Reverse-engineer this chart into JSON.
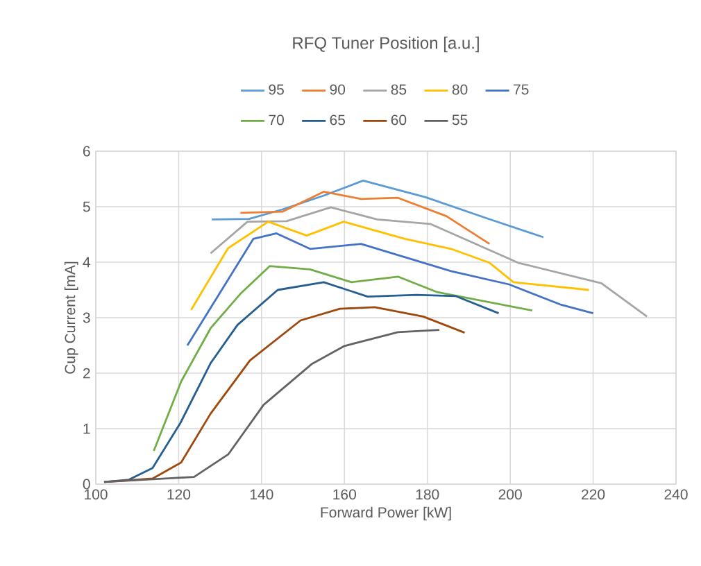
{
  "chart_data": {
    "type": "line",
    "legend_title": "RFQ Tuner Position [a.u.]",
    "xlabel": "Forward Power [kW]",
    "ylabel": "Cup Current [mA]",
    "xlim": [
      100,
      240
    ],
    "xticks": [
      100,
      120,
      140,
      160,
      180,
      200,
      220,
      240
    ],
    "ylim": [
      0,
      6
    ],
    "yticks": [
      0,
      1,
      2,
      3,
      4,
      5,
      6
    ],
    "grid": true,
    "legend": "top",
    "marker": "none",
    "line_style": "solid",
    "series": [
      {
        "name": "95",
        "color": "#5b9bd5",
        "x": [
          128,
          137,
          145,
          155,
          164.5,
          179.6,
          194,
          208
        ],
        "values": [
          4.77,
          4.78,
          4.95,
          5.2,
          5.47,
          5.17,
          4.8,
          4.45
        ]
      },
      {
        "name": "90",
        "color": "#ed7d31",
        "x": [
          134.9,
          145,
          155,
          164,
          172.9,
          184.6,
          195
        ],
        "values": [
          4.89,
          4.91,
          5.27,
          5.14,
          5.16,
          4.83,
          4.33
        ]
      },
      {
        "name": "85",
        "color": "#a5a5a5",
        "x": [
          127.7,
          136.6,
          146,
          156.7,
          167.9,
          180.7,
          201.9,
          222,
          233
        ],
        "values": [
          4.16,
          4.73,
          4.74,
          4.99,
          4.77,
          4.69,
          3.99,
          3.62,
          3.02
        ]
      },
      {
        "name": "80",
        "color": "#ffc000",
        "x": [
          123,
          131.9,
          141.6,
          150.9,
          159.8,
          174.6,
          185.7,
          195,
          200.8,
          219
        ],
        "values": [
          3.14,
          4.25,
          4.73,
          4.48,
          4.73,
          4.42,
          4.24,
          3.99,
          3.64,
          3.5
        ]
      },
      {
        "name": "75",
        "color": "#4472c4",
        "x": [
          122.1,
          138,
          143.6,
          151.7,
          164,
          185.7,
          199.7,
          212,
          220
        ],
        "values": [
          2.5,
          4.42,
          4.52,
          4.24,
          4.33,
          3.84,
          3.6,
          3.24,
          3.08
        ]
      },
      {
        "name": "70",
        "color": "#70ad47",
        "x": [
          114,
          120.6,
          127.7,
          134.9,
          142,
          151.7,
          161.7,
          172.9,
          182.4,
          205.3
        ],
        "values": [
          0.6,
          1.85,
          2.81,
          3.43,
          3.93,
          3.87,
          3.64,
          3.74,
          3.46,
          3.13
        ]
      },
      {
        "name": "65",
        "color": "#255e91",
        "x": [
          102,
          108,
          113.7,
          120.4,
          127.7,
          134.2,
          143.9,
          155,
          165.6,
          177.4,
          186.8,
          197.2
        ],
        "values": [
          0.04,
          0.08,
          0.29,
          1.1,
          2.18,
          2.87,
          3.5,
          3.64,
          3.38,
          3.41,
          3.39,
          3.08
        ]
      },
      {
        "name": "60",
        "color": "#9e480e",
        "x": [
          102,
          113.7,
          120.6,
          127.7,
          137.2,
          149.4,
          158.9,
          167.3,
          179,
          189
        ],
        "values": [
          0.04,
          0.1,
          0.39,
          1.27,
          2.23,
          2.95,
          3.16,
          3.19,
          3.02,
          2.73
        ]
      },
      {
        "name": "55",
        "color": "#636363",
        "x": [
          102,
          123.7,
          132,
          140.5,
          152.2,
          160,
          172.9,
          182.9
        ],
        "values": [
          0.04,
          0.13,
          0.54,
          1.43,
          2.17,
          2.49,
          2.74,
          2.78
        ]
      }
    ]
  }
}
